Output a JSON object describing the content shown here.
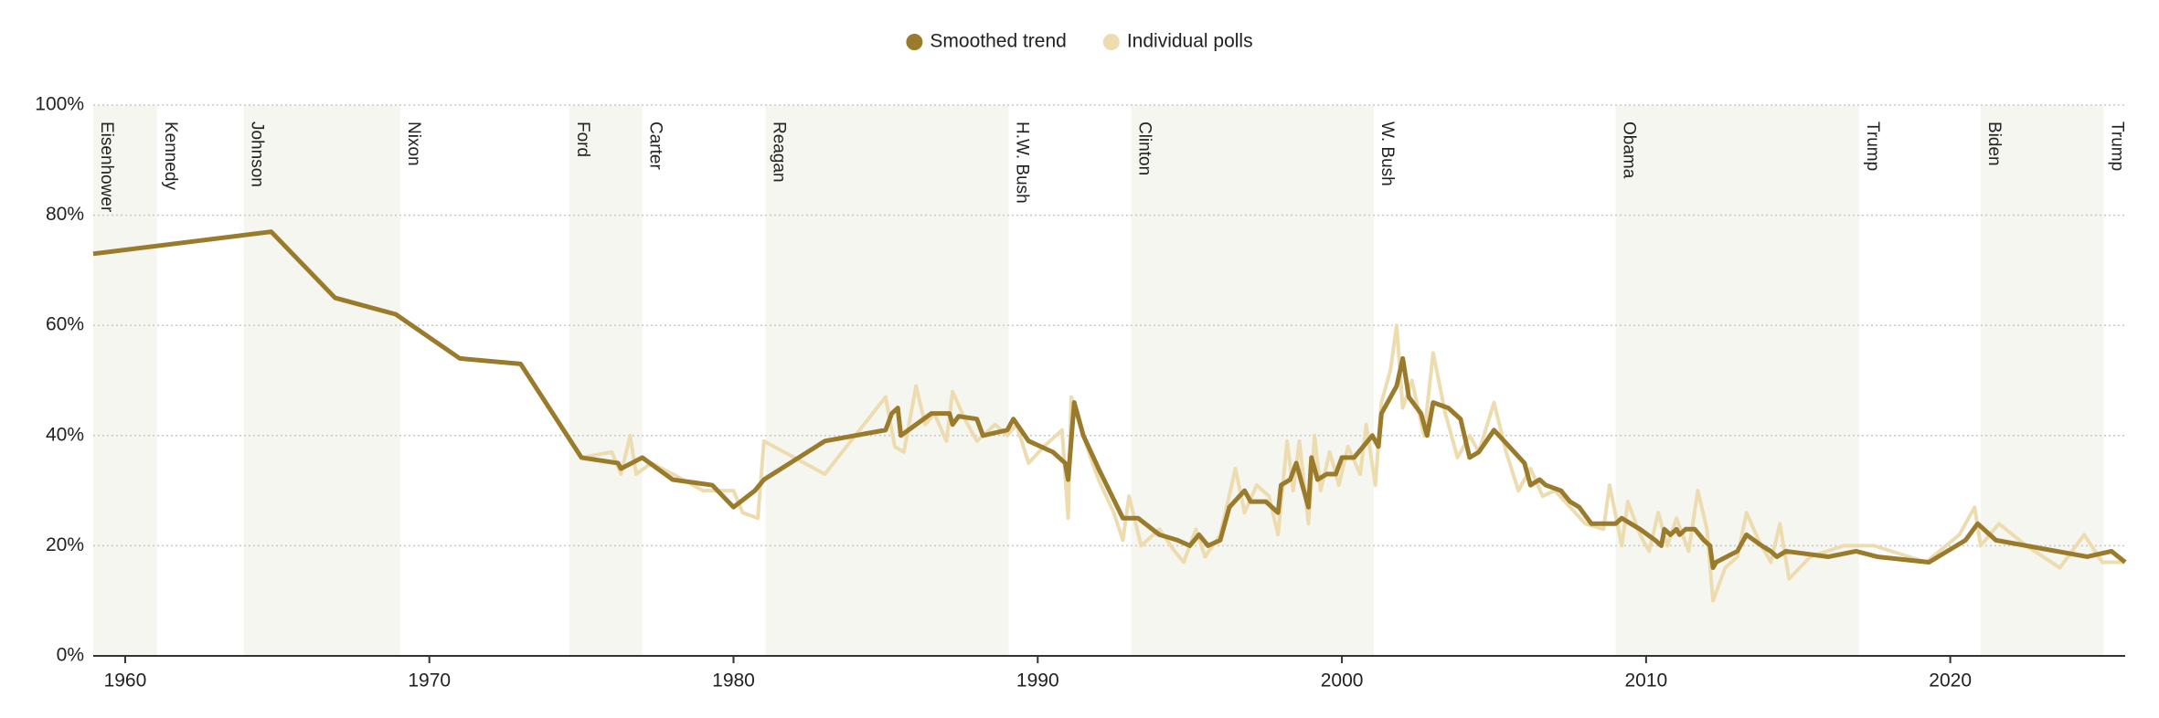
{
  "chart_data": {
    "type": "line",
    "xlim": [
      1958.95,
      2025.75
    ],
    "ylim": [
      0,
      100
    ],
    "xticks": [
      1960,
      1970,
      1980,
      1990,
      2000,
      2010,
      2020
    ],
    "yticks": [
      {
        "value": 0,
        "label": "0%"
      },
      {
        "value": 20,
        "label": "20%"
      },
      {
        "value": 40,
        "label": "40%"
      },
      {
        "value": 60,
        "label": "60%"
      },
      {
        "value": 80,
        "label": "80%"
      },
      {
        "value": 100,
        "label": "100%"
      }
    ],
    "grid": true,
    "legend": "top",
    "presidents": [
      {
        "name": "Eisenhower",
        "start": 1953,
        "color": "#c0392b",
        "shade": "#f6f6f0"
      },
      {
        "name": "Kennedy",
        "start": 1961.05,
        "color": "#3d5a80",
        "shade": "#ffffff"
      },
      {
        "name": "Johnson",
        "start": 1963.9,
        "color": "#3d5a80",
        "shade": "#f6f6f0"
      },
      {
        "name": "Nixon",
        "start": 1969.05,
        "color": "#c0392b",
        "shade": "#ffffff"
      },
      {
        "name": "Ford",
        "start": 1974.6,
        "color": "#c0392b",
        "shade": "#f6f6f0"
      },
      {
        "name": "Carter",
        "start": 1977.0,
        "color": "#3d5a80",
        "shade": "#ffffff"
      },
      {
        "name": "Reagan",
        "start": 1981.05,
        "color": "#c0392b",
        "shade": "#f6f6f0"
      },
      {
        "name": "H.W. Bush",
        "start": 1989.05,
        "color": "#c0392b",
        "shade": "#ffffff"
      },
      {
        "name": "Clinton",
        "start": 1993.07,
        "color": "#3d5a80",
        "shade": "#f6f6f0"
      },
      {
        "name": "W. Bush",
        "start": 2001.05,
        "color": "#c0392b",
        "shade": "#ffffff"
      },
      {
        "name": "Obama",
        "start": 2009.0,
        "color": "#3d5a80",
        "shade": "#f6f6f0"
      },
      {
        "name": "Trump",
        "start": 2017.0,
        "color": "#c0392b",
        "shade": "#ffffff"
      },
      {
        "name": "Biden",
        "start": 2021.0,
        "color": "#3d5a80",
        "shade": "#f6f6f0"
      },
      {
        "name": "Trump",
        "start": 2025.05,
        "color": "#c0392b",
        "shade": "#ffffff"
      }
    ],
    "series": [
      {
        "name": "Smoothed trend",
        "color": "#9a7b2c",
        "width": 5,
        "x": [
          1958.95,
          1964.8,
          1966.9,
          1968.9,
          1971,
          1973,
          1975,
          1976.2,
          1976.3,
          1977,
          1978,
          1979.3,
          1980,
          1980.7,
          1981,
          1983,
          1985,
          1985.2,
          1985.4,
          1985.5,
          1986.5,
          1987.1,
          1987.2,
          1987.4,
          1988,
          1988.2,
          1989,
          1989.2,
          1989.7,
          1990.5,
          1990.9,
          1991,
          1991.2,
          1991.5,
          1992,
          1992.8,
          1993.3,
          1994,
          1994.6,
          1995,
          1995.3,
          1995.6,
          1996,
          1996.3,
          1996.8,
          1997,
          1997.5,
          1997.9,
          1998,
          1998.3,
          1998.5,
          1998.9,
          1999,
          1999.2,
          1999.5,
          1999.8,
          2000,
          2000.4,
          2000.7,
          2001,
          2001.2,
          2001.3,
          2001.8,
          2002,
          2002.2,
          2002.6,
          2002.8,
          2003,
          2003.5,
          2003.9,
          2004.2,
          2004.5,
          2005,
          2005.5,
          2006,
          2006.2,
          2006.5,
          2006.7,
          2007.2,
          2007.5,
          2007.8,
          2008.2,
          2009,
          2009.2,
          2009.8,
          2010.3,
          2010.5,
          2010.6,
          2010.8,
          2011,
          2011.1,
          2011.3,
          2011.6,
          2011.9,
          2012.1,
          2012.2,
          2012.3,
          2013,
          2013.3,
          2013.8,
          2014.1,
          2014.3,
          2014.6,
          2016,
          2016.9,
          2017.6,
          2019.3,
          2020.5,
          2020.9,
          2021.5,
          2024.5,
          2025.3,
          2025.75
        ],
        "values": [
          73,
          77,
          65,
          62,
          54,
          53,
          36,
          35,
          34,
          36,
          32,
          31,
          27,
          30,
          32,
          39,
          41,
          44,
          45,
          40,
          44,
          44,
          42,
          43.5,
          43,
          40,
          41,
          43,
          39,
          37,
          35,
          32,
          46,
          40,
          34,
          25,
          25,
          22,
          21,
          20,
          22,
          20,
          21,
          27,
          30,
          28,
          28,
          26,
          31,
          32,
          35,
          27,
          36,
          32,
          33,
          33,
          36,
          36,
          38,
          40,
          38,
          44,
          49,
          54,
          47,
          44,
          40,
          46,
          45,
          43,
          36,
          37,
          41,
          38,
          35,
          31,
          32,
          31,
          30,
          28,
          27,
          24,
          24,
          25,
          23,
          21,
          20,
          23,
          22,
          23,
          22,
          23,
          23,
          21,
          20,
          16,
          17,
          19,
          22,
          20,
          19,
          18,
          19,
          18,
          19,
          18,
          17,
          21,
          24,
          21,
          18,
          19,
          17
        ]
      },
      {
        "name": "Individual polls",
        "color": "#ecdcb0",
        "width": 4,
        "x": [
          1958.95,
          1964.8,
          1966.9,
          1968.9,
          1971,
          1973,
          1975,
          1976,
          1976.3,
          1976.6,
          1976.8,
          1977.3,
          1978,
          1979,
          1980,
          1980.3,
          1980.8,
          1981,
          1982,
          1983,
          1984,
          1985,
          1985.3,
          1985.6,
          1986,
          1986.3,
          1986.6,
          1987,
          1987.2,
          1987.6,
          1988,
          1988.6,
          1989,
          1989.3,
          1989.7,
          1990.2,
          1990.8,
          1991,
          1991.1,
          1991.5,
          1991.8,
          1992,
          1992.5,
          1992.8,
          1993,
          1993.4,
          1994,
          1994.5,
          1994.8,
          1995.2,
          1995.5,
          1996,
          1996.5,
          1996.8,
          1997.2,
          1997.6,
          1997.9,
          1998.2,
          1998.4,
          1998.6,
          1998.9,
          1999.1,
          1999.3,
          1999.6,
          1999.9,
          2000.2,
          2000.6,
          2000.8,
          2001.1,
          2001.3,
          2001.6,
          2001.8,
          2002,
          2002.3,
          2002.7,
          2003,
          2003.4,
          2003.8,
          2004.2,
          2004.5,
          2005,
          2005.4,
          2005.8,
          2006.2,
          2006.6,
          2007,
          2007.5,
          2008,
          2008.6,
          2008.8,
          2009.2,
          2009.4,
          2009.8,
          2010.1,
          2010.4,
          2010.7,
          2011,
          2011.4,
          2011.7,
          2012,
          2012.2,
          2012.6,
          2013,
          2013.3,
          2013.7,
          2014.1,
          2014.4,
          2014.7,
          2015.4,
          2016.5,
          2017.5,
          2019.2,
          2020.3,
          2020.8,
          2021,
          2021.6,
          2022.5,
          2023.6,
          2024.4,
          2025,
          2025.7
        ],
        "values": [
          73,
          77,
          65,
          62,
          54,
          53,
          36,
          37,
          33,
          40,
          33,
          35,
          33,
          30,
          30,
          26,
          25,
          39,
          36,
          33,
          40,
          47,
          38,
          37,
          49,
          42,
          44,
          39,
          48,
          43,
          39,
          42,
          40,
          42,
          35,
          38,
          41,
          25,
          47,
          40,
          35,
          32,
          26,
          21,
          29,
          20,
          23,
          19,
          17,
          23,
          18,
          22,
          34,
          26,
          31,
          29,
          22,
          39,
          30,
          39,
          24,
          40,
          30,
          37,
          31,
          38,
          33,
          42,
          31,
          46,
          52,
          60,
          45,
          50,
          40,
          55,
          44,
          36,
          40,
          37,
          46,
          37,
          30,
          34,
          29,
          30,
          27,
          24,
          23,
          31,
          20,
          28,
          22,
          19,
          26,
          20,
          25,
          19,
          30,
          23,
          10,
          16,
          18,
          26,
          21,
          17,
          24,
          14,
          18,
          20,
          20,
          17,
          22,
          27,
          20,
          24,
          20,
          16,
          22,
          17,
          17
        ]
      }
    ]
  }
}
